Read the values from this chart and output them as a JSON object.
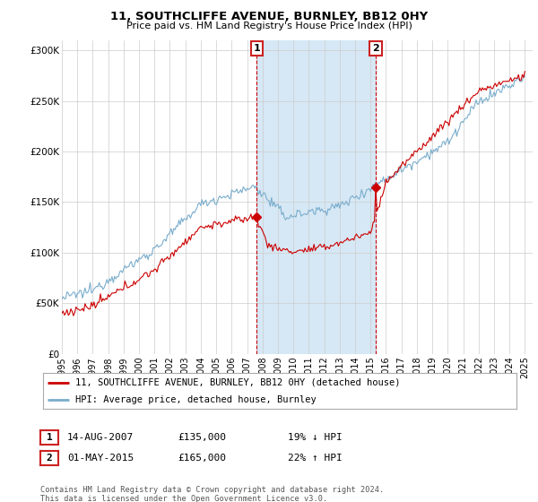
{
  "title": "11, SOUTHCLIFFE AVENUE, BURNLEY, BB12 0HY",
  "subtitle": "Price paid vs. HM Land Registry's House Price Index (HPI)",
  "ylim": [
    0,
    310000
  ],
  "xlim_start": 1995.0,
  "xlim_end": 2025.5,
  "red_color": "#cc0000",
  "blue_color": "#7aadcc",
  "sale1_x": 2007.62,
  "sale1_y": 135000,
  "sale2_x": 2015.33,
  "sale2_y": 165000,
  "highlight_color": "#d6e8f5",
  "highlight1_xstart": 2007.62,
  "highlight1_xend": 2015.33,
  "legend_line1": "11, SOUTHCLIFFE AVENUE, BURNLEY, BB12 0HY (detached house)",
  "legend_line2": "HPI: Average price, detached house, Burnley",
  "table_row1_date": "14-AUG-2007",
  "table_row1_price": "£135,000",
  "table_row1_hpi": "19% ↓ HPI",
  "table_row2_date": "01-MAY-2015",
  "table_row2_price": "£165,000",
  "table_row2_hpi": "22% ↑ HPI",
  "footer": "Contains HM Land Registry data © Crown copyright and database right 2024.\nThis data is licensed under the Open Government Licence v3.0.",
  "background_color": "#ffffff",
  "grid_color": "#cccccc"
}
